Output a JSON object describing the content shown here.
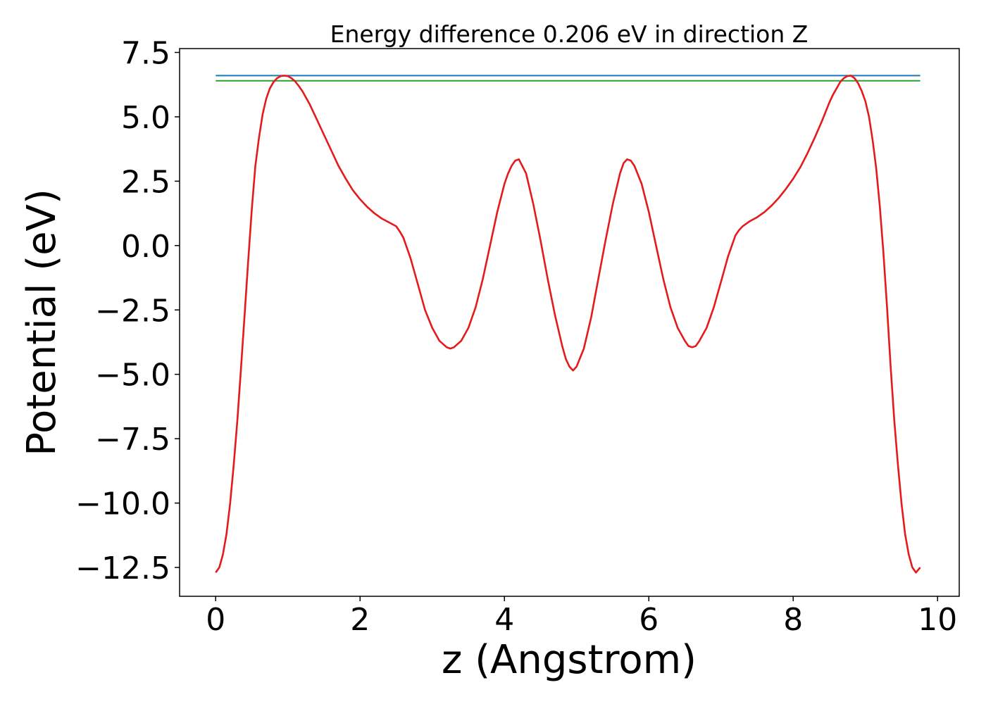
{
  "chart_data": {
    "type": "line",
    "title": "Energy difference 0.206 eV in direction Z",
    "xlabel": "z (Angstrom)",
    "ylabel": "Potential (eV)",
    "xlim": [
      -0.5,
      10.3
    ],
    "ylim": [
      -13.62,
      7.65
    ],
    "x_ticks": [
      0,
      2,
      4,
      6,
      8,
      10
    ],
    "x_tick_labels": [
      "0",
      "2",
      "4",
      "6",
      "8",
      "10"
    ],
    "y_ticks": [
      7.5,
      5.0,
      2.5,
      0.0,
      -2.5,
      -5.0,
      -7.5,
      -10.0,
      -12.5
    ],
    "y_tick_labels": [
      "7.5",
      "5.0",
      "2.5",
      "0.0",
      "−2.5",
      "−5.0",
      "−7.5",
      "−10.0",
      "−12.5"
    ],
    "grid": false,
    "series": [
      {
        "color": "#1f77b4",
        "x": [
          0,
          9.76
        ],
        "y": [
          6.6,
          6.6
        ]
      },
      {
        "color": "#2ca02c",
        "x": [
          0,
          9.76
        ],
        "y": [
          6.4,
          6.4
        ]
      },
      {
        "color": "#e41a1c",
        "x": [
          0,
          0.05,
          0.1,
          0.15,
          0.2,
          0.25,
          0.3,
          0.35,
          0.4,
          0.45,
          0.5,
          0.55,
          0.6,
          0.65,
          0.7,
          0.75,
          0.8,
          0.85,
          0.9,
          0.95,
          1.0,
          1.05,
          1.1,
          1.15,
          1.2,
          1.25,
          1.3,
          1.4,
          1.5,
          1.6,
          1.7,
          1.8,
          1.9,
          2.0,
          2.1,
          2.2,
          2.3,
          2.4,
          2.5,
          2.55,
          2.6,
          2.7,
          2.8,
          2.9,
          3.0,
          3.1,
          3.2,
          3.25,
          3.3,
          3.4,
          3.5,
          3.6,
          3.7,
          3.8,
          3.9,
          4.0,
          4.05,
          4.1,
          4.15,
          4.2,
          4.3,
          4.4,
          4.5,
          4.6,
          4.7,
          4.8,
          4.85,
          4.9,
          4.95,
          5.0,
          5.1,
          5.2,
          5.3,
          5.4,
          5.5,
          5.6,
          5.65,
          5.7,
          5.75,
          5.8,
          5.9,
          6.0,
          6.1,
          6.2,
          6.3,
          6.4,
          6.5,
          6.55,
          6.6,
          6.65,
          6.7,
          6.8,
          6.9,
          7.0,
          7.1,
          7.2,
          7.25,
          7.3,
          7.4,
          7.5,
          7.6,
          7.7,
          7.8,
          7.9,
          8.0,
          8.1,
          8.2,
          8.3,
          8.4,
          8.45,
          8.5,
          8.55,
          8.6,
          8.65,
          8.7,
          8.75,
          8.8,
          8.85,
          8.9,
          8.95,
          9.0,
          9.05,
          9.1,
          9.15,
          9.2,
          9.25,
          9.3,
          9.35,
          9.4,
          9.45,
          9.5,
          9.55,
          9.6,
          9.65,
          9.7,
          9.76
        ],
        "y": [
          -12.7,
          -12.5,
          -12.0,
          -11.2,
          -10.0,
          -8.5,
          -6.8,
          -4.8,
          -2.7,
          -0.6,
          1.4,
          3.1,
          4.2,
          5.1,
          5.7,
          6.1,
          6.35,
          6.5,
          6.58,
          6.6,
          6.58,
          6.5,
          6.38,
          6.2,
          6.0,
          5.75,
          5.5,
          4.9,
          4.3,
          3.7,
          3.1,
          2.6,
          2.15,
          1.8,
          1.5,
          1.25,
          1.05,
          0.9,
          0.75,
          0.55,
          0.3,
          -0.5,
          -1.5,
          -2.5,
          -3.2,
          -3.7,
          -3.95,
          -4.0,
          -3.95,
          -3.7,
          -3.2,
          -2.4,
          -1.3,
          0.0,
          1.3,
          2.4,
          2.8,
          3.1,
          3.3,
          3.35,
          2.8,
          1.6,
          0.2,
          -1.3,
          -2.7,
          -3.9,
          -4.4,
          -4.7,
          -4.85,
          -4.7,
          -4.0,
          -2.8,
          -1.3,
          0.2,
          1.6,
          2.8,
          3.2,
          3.35,
          3.3,
          3.1,
          2.4,
          1.3,
          0.0,
          -1.3,
          -2.4,
          -3.2,
          -3.7,
          -3.9,
          -3.95,
          -3.9,
          -3.7,
          -3.2,
          -2.4,
          -1.4,
          -0.4,
          0.4,
          0.6,
          0.75,
          0.95,
          1.1,
          1.3,
          1.55,
          1.85,
          2.2,
          2.6,
          3.05,
          3.6,
          4.2,
          4.85,
          5.2,
          5.55,
          5.85,
          6.1,
          6.35,
          6.5,
          6.58,
          6.6,
          6.5,
          6.3,
          6.0,
          5.6,
          5.0,
          4.1,
          3.0,
          1.5,
          -0.3,
          -2.4,
          -4.7,
          -6.8,
          -8.5,
          -10.0,
          -11.2,
          -12.0,
          -12.5,
          -12.7,
          -12.5
        ]
      }
    ]
  }
}
